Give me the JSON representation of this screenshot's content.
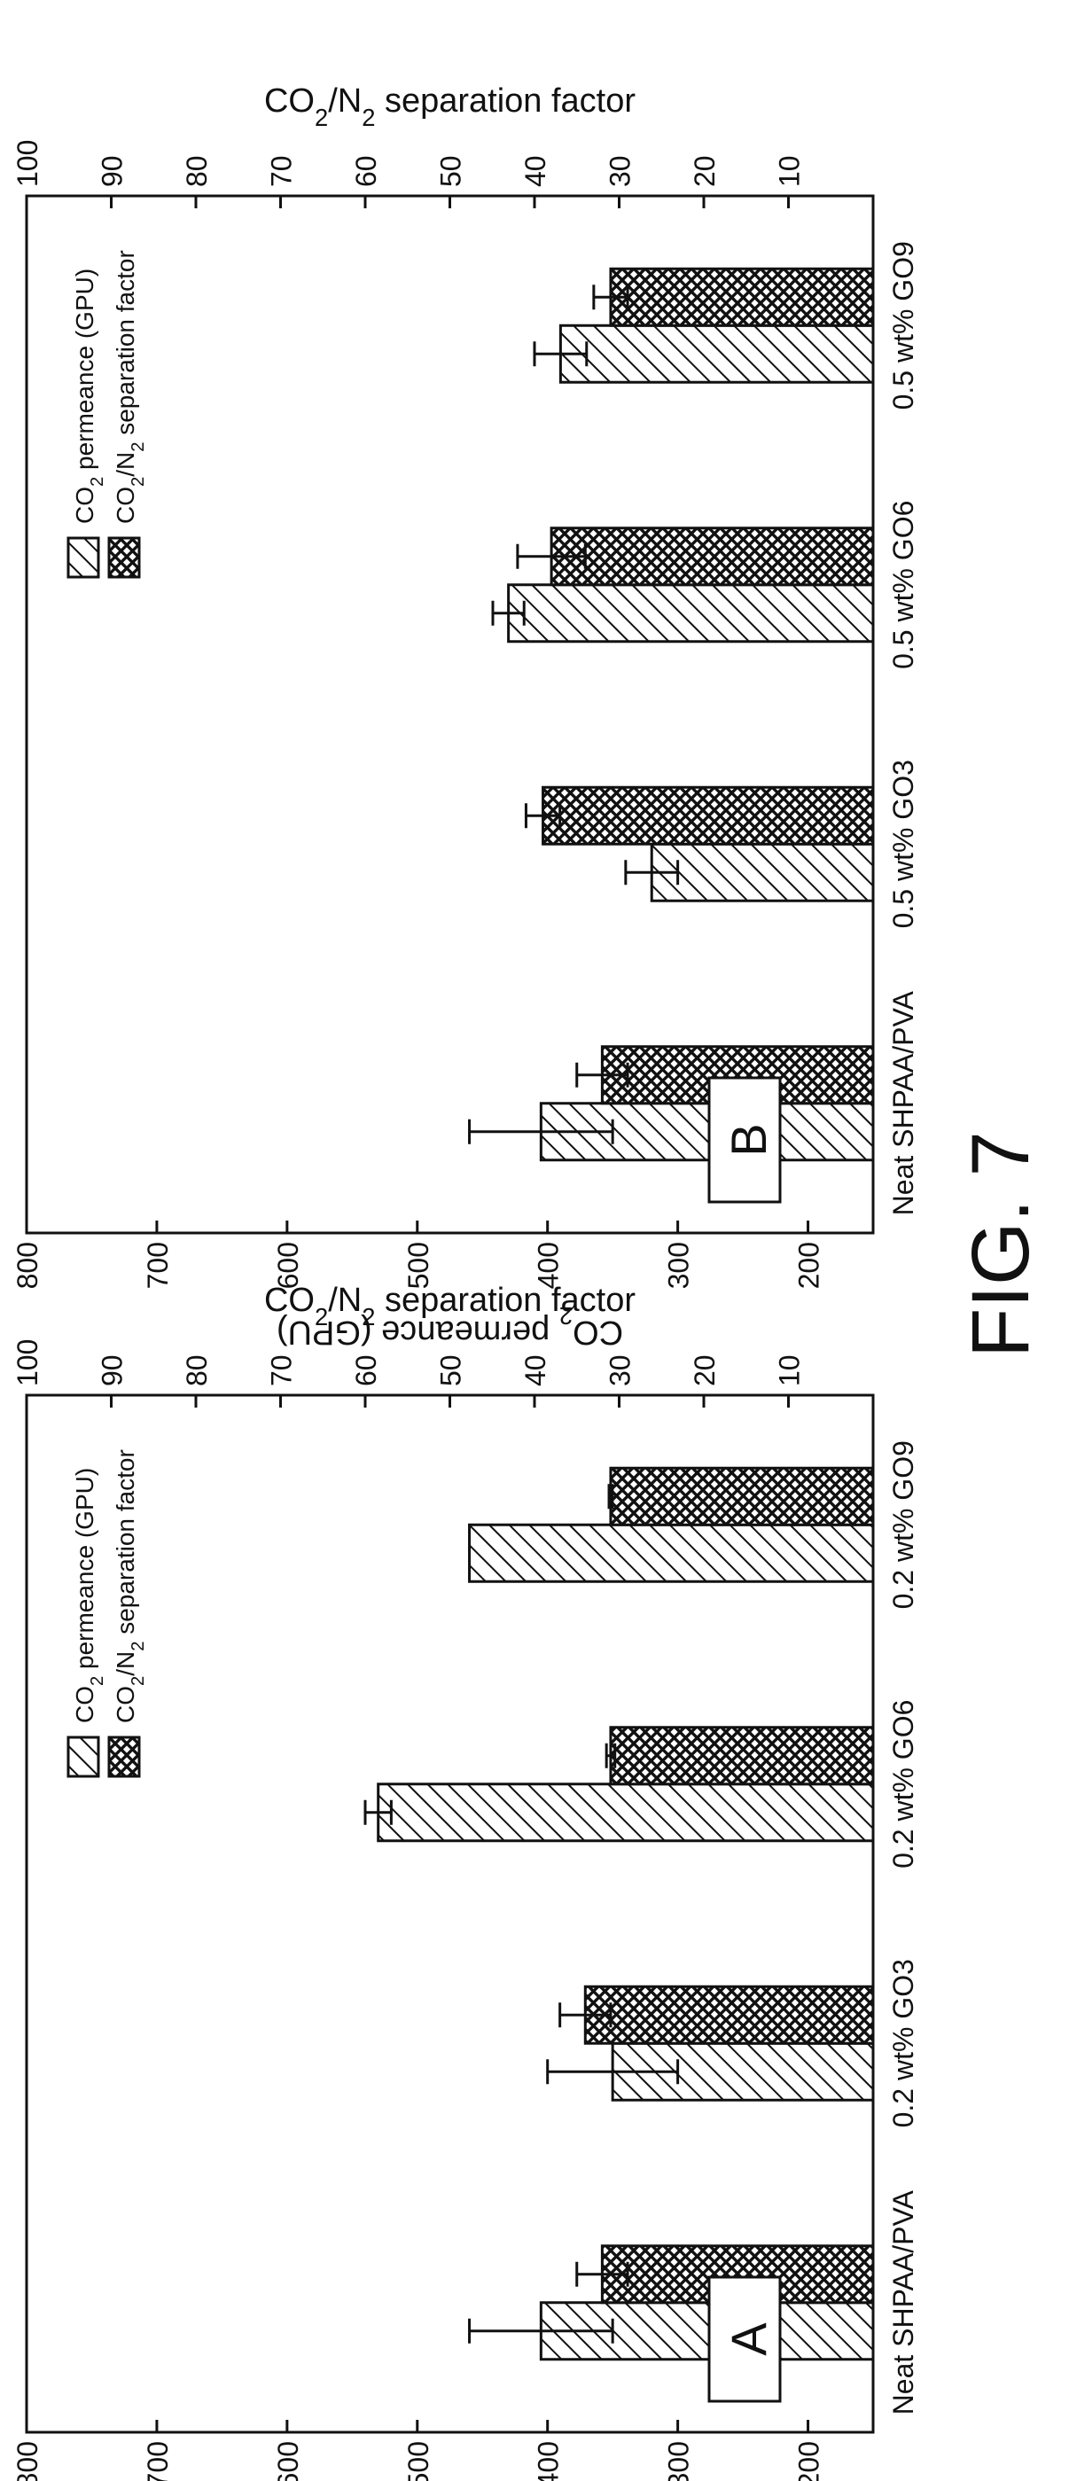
{
  "figure_label": "FIG. 7",
  "legend": {
    "permeance": [
      "CO",
      "2",
      " permeance (GPU)"
    ],
    "separation": [
      "CO",
      "2",
      "/N",
      "2",
      " separation factor"
    ]
  },
  "axes": {
    "left_label": [
      "CO",
      "2",
      " permeance (GPU)"
    ],
    "right_label": [
      "CO",
      "2",
      "/N",
      "2",
      " separation factor"
    ],
    "left_ylim": [
      150,
      800
    ],
    "left_ticks": [
      200,
      300,
      400,
      500,
      600,
      700,
      800
    ],
    "right_ylim": [
      0,
      100
    ],
    "right_ticks": [
      10,
      20,
      30,
      40,
      50,
      60,
      70,
      80,
      90,
      100
    ]
  },
  "chart_data": [
    {
      "type": "bar",
      "panel_label": "A",
      "categories": [
        "Neat SHPAA/PVA",
        "0.2 wt% GO3",
        "0.2 wt% GO6",
        "0.2 wt% GO9"
      ],
      "left_ylim": [
        150,
        800
      ],
      "right_ylim": [
        0,
        100
      ],
      "series": [
        {
          "name": "CO2 permeance (GPU)",
          "axis": "left",
          "pattern": "hatch",
          "values": [
            405,
            350,
            530,
            460
          ],
          "errors": [
            55,
            50,
            10,
            0
          ]
        },
        {
          "name": "CO2/N2 separation factor",
          "axis": "right",
          "pattern": "crosshatch",
          "values": [
            32,
            34,
            31,
            31
          ],
          "errors": [
            3,
            3,
            0.5,
            0.2
          ]
        }
      ]
    },
    {
      "type": "bar",
      "panel_label": "B",
      "categories": [
        "Neat SHPAA/PVA",
        "0.5 wt% GO3",
        "0.5 wt% GO6",
        "0.5 wt% GO9"
      ],
      "left_ylim": [
        150,
        800
      ],
      "right_ylim": [
        0,
        100
      ],
      "series": [
        {
          "name": "CO2 permeance (GPU)",
          "axis": "left",
          "pattern": "hatch",
          "values": [
            405,
            320,
            430,
            390
          ],
          "errors": [
            55,
            20,
            12,
            20
          ]
        },
        {
          "name": "CO2/N2 separation factor",
          "axis": "right",
          "pattern": "crosshatch",
          "values": [
            32,
            39,
            38,
            31
          ],
          "errors": [
            3,
            2,
            4,
            2
          ]
        }
      ]
    }
  ]
}
